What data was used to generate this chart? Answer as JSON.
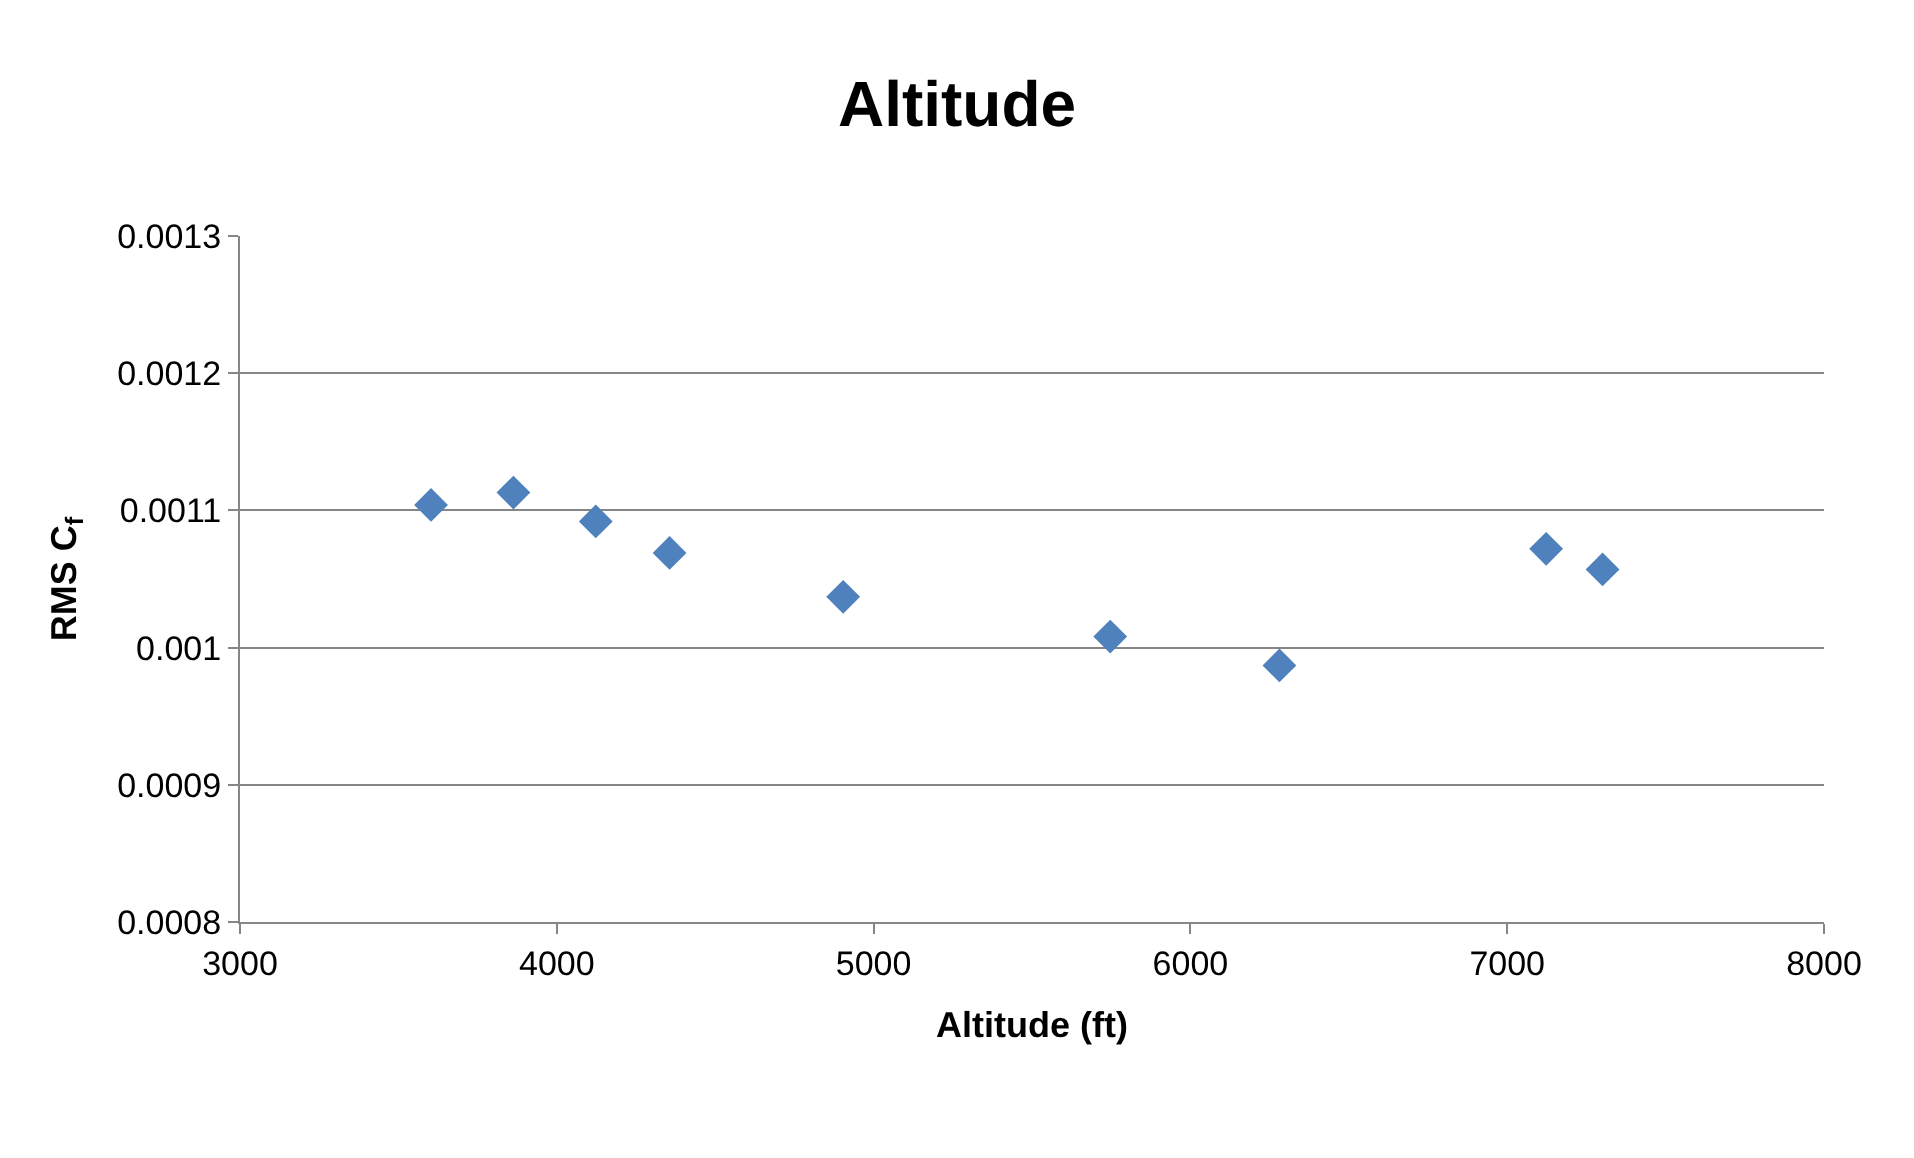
{
  "chart_data": {
    "type": "scatter",
    "title": "Altitude",
    "xlabel": "Altitude (ft)",
    "ylabel": "RMS C$_{f}$",
    "x": [
      3603,
      3863,
      4123,
      4356,
      4904,
      5747,
      6281,
      7123,
      7301
    ],
    "series": [
      {
        "color": "#4f81bd",
        "values": [
          0.001104,
          0.001113,
          0.001092,
          0.001069,
          0.001037,
          0.001008,
          0.000987,
          0.001072,
          0.001057
        ]
      }
    ],
    "xlim": [
      3000,
      8000
    ],
    "xticks": [
      3000,
      4000,
      5000,
      6000,
      7000,
      8000
    ],
    "ylim": [
      0.0008,
      0.0013
    ],
    "yticks": [
      0.0008,
      0.0009,
      0.001,
      0.0011,
      0.0012,
      0.0013
    ],
    "grid": "y",
    "marker": "diamond"
  }
}
